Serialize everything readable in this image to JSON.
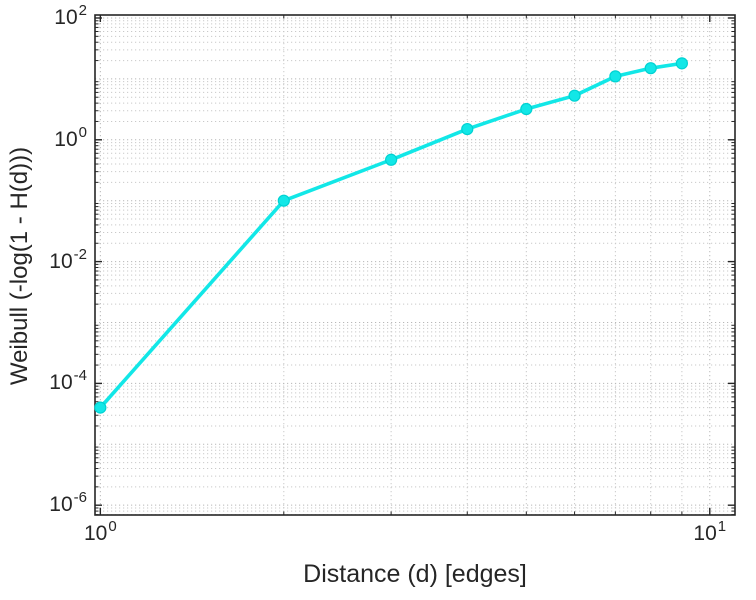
{
  "chart_data": {
    "type": "line",
    "title": "",
    "xlabel": "Distance (d) [edges]",
    "ylabel": "Weibull (-log(1 - H(d)))",
    "xscale": "log",
    "yscale": "log",
    "xlim": [
      0.98,
      11
    ],
    "ylim": [
      6.9e-07,
      112
    ],
    "grid": "major and minor gridlines, dotted",
    "legend_position": "none",
    "x": [
      1,
      2,
      3,
      4,
      5,
      6,
      7,
      8,
      9
    ],
    "y": [
      4e-05,
      0.1,
      0.47,
      1.5,
      3.2,
      5.3,
      11,
      15,
      18
    ],
    "x_tick_values": [
      1,
      10
    ],
    "x_tick_labels": [
      {
        "base": "10",
        "exp": "0"
      },
      {
        "base": "10",
        "exp": "1"
      }
    ],
    "y_tick_values": [
      1e-06,
      0.0001,
      0.01,
      1,
      100
    ],
    "y_tick_labels": [
      {
        "base": "10",
        "exp": "-6"
      },
      {
        "base": "10",
        "exp": "-4"
      },
      {
        "base": "10",
        "exp": "-2"
      },
      {
        "base": "10",
        "exp": "0"
      },
      {
        "base": "10",
        "exp": "2"
      }
    ],
    "line_color": "#12e7e7",
    "marker_fill": "#12e7e7",
    "marker_edge": "#00d2d2",
    "axis_color": "#262626",
    "major_grid_color": "#b8b8b8",
    "minor_grid_color": "#c9c9c9"
  }
}
